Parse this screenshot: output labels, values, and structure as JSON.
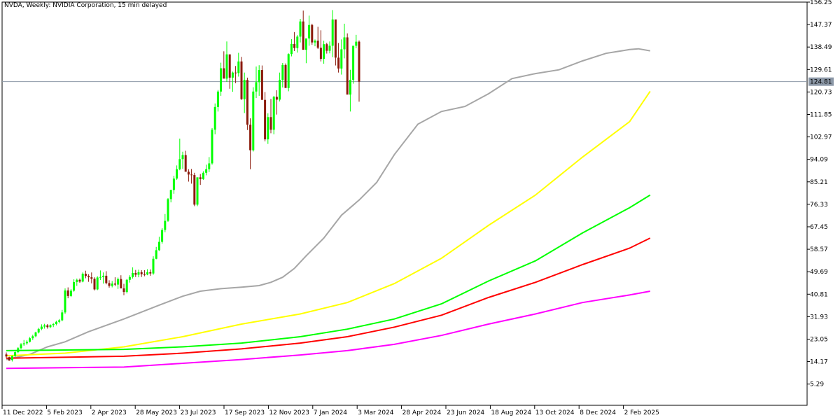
{
  "header": {
    "title": "NVDA, Weekly:  NVIDIA Corporation, 15 min delayed"
  },
  "price_tag": {
    "value": "124.81",
    "bg_color": "#8c98a7"
  },
  "chart_data": {
    "type": "line",
    "chart_kind": "candlestick",
    "timeframe": "Weekly",
    "y_ticks": [
      "156.25",
      "147.37",
      "138.49",
      "129.61",
      "120.73",
      "111.85",
      "102.97",
      "94.09",
      "85.21",
      "76.33",
      "67.45",
      "58.57",
      "49.69",
      "40.81",
      "31.93",
      "23.05",
      "14.17",
      "5.29"
    ],
    "ylim": [
      -3.1,
      156.25
    ],
    "x_ticks": [
      "11 Dec 2022",
      "5 Feb 2023",
      "2 Apr 2023",
      "28 May 2023",
      "23 Jul 2023",
      "17 Sep 2023",
      "12 Nov 2023",
      "7 Jan 2024",
      "3 Mar 2024",
      "28 Apr 2024",
      "23 Jun 2024",
      "18 Aug 2024",
      "13 Oct 2024",
      "8 Dec 2024",
      "2 Feb 2025"
    ],
    "current_price": 124.81,
    "colors": {
      "up": "#00ff00",
      "down": "#8b1a0b",
      "grid": "#000000"
    },
    "series": [
      {
        "style": "candlestick",
        "values": [
          [
            17.0,
            17.8,
            15.5,
            16.2
          ],
          [
            15.9,
            16.1,
            14.5,
            14.6
          ],
          [
            14.8,
            16.6,
            14.2,
            16.4
          ],
          [
            16.4,
            18.2,
            16.0,
            17.9
          ],
          [
            17.9,
            19.9,
            17.5,
            19.5
          ],
          [
            19.5,
            21.5,
            19.0,
            21.0
          ],
          [
            21.0,
            22.7,
            20.4,
            21.4
          ],
          [
            21.4,
            22.6,
            20.8,
            22.0
          ],
          [
            22.0,
            23.9,
            21.7,
            23.4
          ],
          [
            23.4,
            24.8,
            22.7,
            24.2
          ],
          [
            24.2,
            26.0,
            23.8,
            25.7
          ],
          [
            25.7,
            27.5,
            25.3,
            27.1
          ],
          [
            27.1,
            28.9,
            26.6,
            28.0
          ],
          [
            28.0,
            29.1,
            27.2,
            28.5
          ],
          [
            28.5,
            29.0,
            27.2,
            27.8
          ],
          [
            27.8,
            28.9,
            27.4,
            28.6
          ],
          [
            28.6,
            29.4,
            27.8,
            29.0
          ],
          [
            29.0,
            30.3,
            28.5,
            29.9
          ],
          [
            29.9,
            31.0,
            29.3,
            30.5
          ],
          [
            30.5,
            34.6,
            30.1,
            33.6
          ],
          [
            33.6,
            43.1,
            33.0,
            42.3
          ],
          [
            42.3,
            43.5,
            39.2,
            40.1
          ],
          [
            40.1,
            42.8,
            39.7,
            42.2
          ],
          [
            42.2,
            46.7,
            41.8,
            45.6
          ],
          [
            45.6,
            47.0,
            44.1,
            46.5
          ],
          [
            46.5,
            47.0,
            45.3,
            45.8
          ],
          [
            45.8,
            49.4,
            45.5,
            48.9
          ],
          [
            48.9,
            50.1,
            47.1,
            48.0
          ],
          [
            48.0,
            48.7,
            45.7,
            47.5
          ],
          [
            47.5,
            49.4,
            45.1,
            46.9
          ],
          [
            46.9,
            47.5,
            42.3,
            42.7
          ],
          [
            42.7,
            47.9,
            42.4,
            47.4
          ],
          [
            47.4,
            50.2,
            46.4,
            47.6
          ],
          [
            47.6,
            49.4,
            45.0,
            48.1
          ],
          [
            48.1,
            49.9,
            44.7,
            45.2
          ],
          [
            45.2,
            46.3,
            43.4,
            44.1
          ],
          [
            44.1,
            46.0,
            43.5,
            45.0
          ],
          [
            45.0,
            47.5,
            44.0,
            44.6
          ],
          [
            44.6,
            47.4,
            42.9,
            46.8
          ],
          [
            46.8,
            48.3,
            43.7,
            43.1
          ],
          [
            43.1,
            44.9,
            40.4,
            41.7
          ],
          [
            41.7,
            46.8,
            41.1,
            46.5
          ],
          [
            46.5,
            48.3,
            45.4,
            47.6
          ],
          [
            47.6,
            51.4,
            47.0,
            49.2
          ],
          [
            49.2,
            50.4,
            47.6,
            48.5
          ],
          [
            48.5,
            50.5,
            47.5,
            49.5
          ],
          [
            49.5,
            50.3,
            47.6,
            48.7
          ],
          [
            48.7,
            50.3,
            47.9,
            48.6
          ],
          [
            48.6,
            50.7,
            48.3,
            49.5
          ],
          [
            49.5,
            50.6,
            48.1,
            49.0
          ],
          [
            49.0,
            55.8,
            48.5,
            54.8
          ],
          [
            54.8,
            59.5,
            54.6,
            58.2
          ],
          [
            58.2,
            63.5,
            57.9,
            61.5
          ],
          [
            61.5,
            66.9,
            60.8,
            66.2
          ],
          [
            66.2,
            72.5,
            65.3,
            69.8
          ],
          [
            69.8,
            78.8,
            69.4,
            78.4
          ],
          [
            78.4,
            82.1,
            77.1,
            82.0
          ],
          [
            82.0,
            87.6,
            80.5,
            86.5
          ],
          [
            86.5,
            91.7,
            86.0,
            90.2
          ],
          [
            90.2,
            102.3,
            89.8,
            94.2
          ],
          [
            94.2,
            97.1,
            90.4,
            95.8
          ],
          [
            95.8,
            97.5,
            90.4,
            89.2
          ],
          [
            89.2,
            90.2,
            85.3,
            88.1
          ],
          [
            88.1,
            90.3,
            84.5,
            87.9
          ],
          [
            87.9,
            88.8,
            75.6,
            76.2
          ],
          [
            76.2,
            86.7,
            75.6,
            87.0
          ],
          [
            87.0,
            88.3,
            84.0,
            86.3
          ],
          [
            86.3,
            89.4,
            86.0,
            88.8
          ],
          [
            88.8,
            92.0,
            87.8,
            90.2
          ],
          [
            90.2,
            95.0,
            89.1,
            92.5
          ],
          [
            92.5,
            106.5,
            92.0,
            105.8
          ],
          [
            105.8,
            116.2,
            104.0,
            114.8
          ],
          [
            114.8,
            121.5,
            113.0,
            120.9
          ],
          [
            120.9,
            132.3,
            119.2,
            130.1
          ],
          [
            130.1,
            136.8,
            126.9,
            126.0
          ],
          [
            126.0,
            140.7,
            124.7,
            135.6
          ],
          [
            135.6,
            131.0,
            122.0,
            126.4
          ],
          [
            126.4,
            128.8,
            120.8,
            128.4
          ],
          [
            128.4,
            131.0,
            124.2,
            128.2
          ],
          [
            128.2,
            136.2,
            126.8,
            132.8
          ],
          [
            132.8,
            134.6,
            117.6,
            117.9
          ],
          [
            117.9,
            128.4,
            112.4,
            125.5
          ],
          [
            125.5,
            126.4,
            105.7,
            107.8
          ],
          [
            107.8,
            110.3,
            90.2,
            97.7
          ],
          [
            97.7,
            122.6,
            97.2,
            120.9
          ],
          [
            120.9,
            130.8,
            118.3,
            124.6
          ],
          [
            124.6,
            131.3,
            119.2,
            129.4
          ],
          [
            129.4,
            131.2,
            118.2,
            117.6
          ],
          [
            117.6,
            120.7,
            101.2,
            102.0
          ],
          [
            102.0,
            112.3,
            100.2,
            110.8
          ],
          [
            110.8,
            118.0,
            104.4,
            105.8
          ],
          [
            105.8,
            119.2,
            104.0,
            118.8
          ],
          [
            118.8,
            121.4,
            111.8,
            117.7
          ],
          [
            117.7,
            128.4,
            117.0,
            125.5
          ],
          [
            125.5,
            132.2,
            122.5,
            131.4
          ],
          [
            131.4,
            132.0,
            123.8,
            122.3
          ],
          [
            122.3,
            136.0,
            121.0,
            135.7
          ],
          [
            135.7,
            141.6,
            134.8,
            139.7
          ],
          [
            139.7,
            144.4,
            136.9,
            138.1
          ],
          [
            138.1,
            143.2,
            136.3,
            142.6
          ],
          [
            142.6,
            149.6,
            140.3,
            148.6
          ],
          [
            148.6,
            152.9,
            141.2,
            137.4
          ],
          [
            137.4,
            140.8,
            132.1,
            141.9
          ],
          [
            141.9,
            150.9,
            139.0,
            147.2
          ],
          [
            147.2,
            147.7,
            139.4,
            140.3
          ],
          [
            140.3,
            141.5,
            138.8,
            141.0
          ],
          [
            141.0,
            146.5,
            137.7,
            138.2
          ],
          [
            138.2,
            145.1,
            132.8,
            133.8
          ],
          [
            133.8,
            141.0,
            131.9,
            139.6
          ],
          [
            139.6,
            140.2,
            135.9,
            137.0
          ],
          [
            137.0,
            140.7,
            136.0,
            139.0
          ],
          [
            139.0,
            153.1,
            134.5,
            149.4
          ],
          [
            149.4,
            145.2,
            131.2,
            134.3
          ],
          [
            134.3,
            140.1,
            128.4,
            130.0
          ],
          [
            130.0,
            141.5,
            127.6,
            137.6
          ],
          [
            137.6,
            147.7,
            134.0,
            142.3
          ],
          [
            142.3,
            143.9,
            120.0,
            119.7
          ],
          [
            119.7,
            129.5,
            113.0,
            125.5
          ],
          [
            125.5,
            138.5,
            124.0,
            139.0
          ],
          [
            139.0,
            143.3,
            138.0,
            140.6
          ],
          [
            140.6,
            141.1,
            116.9,
            124.8
          ]
        ]
      },
      {
        "style": "line",
        "color": "#a6a6a6",
        "values": [
          [
            0,
            15.0
          ],
          [
            8,
            17.0
          ],
          [
            14,
            20.0
          ],
          [
            20,
            22.0
          ],
          [
            28,
            26.0
          ],
          [
            40,
            31.0
          ],
          [
            52,
            36.5
          ],
          [
            60,
            40.0
          ],
          [
            66,
            42.0
          ],
          [
            73,
            43.0
          ],
          [
            80,
            43.6
          ],
          [
            86,
            44.2
          ],
          [
            90,
            45.5
          ],
          [
            94,
            47.5
          ],
          [
            98,
            51.0
          ],
          [
            102,
            56.0
          ],
          [
            108,
            63.0
          ],
          [
            114,
            72.0
          ],
          [
            120,
            78.0
          ],
          [
            126,
            85.0
          ],
          [
            132,
            96.0
          ],
          [
            140,
            108.0
          ],
          [
            148,
            113.0
          ],
          [
            156,
            115.0
          ],
          [
            164,
            120.0
          ],
          [
            172,
            126.0
          ],
          [
            180,
            128.0
          ],
          [
            188,
            129.5
          ],
          [
            196,
            133.0
          ],
          [
            204,
            136.0
          ],
          [
            212,
            137.5
          ],
          [
            215,
            137.8
          ],
          [
            219,
            137.0
          ]
        ]
      },
      {
        "style": "line",
        "color": "#ffff00",
        "values": [
          [
            0,
            16.5
          ],
          [
            20,
            17.5
          ],
          [
            40,
            20.0
          ],
          [
            60,
            24.0
          ],
          [
            80,
            29.0
          ],
          [
            100,
            33.0
          ],
          [
            116,
            37.5
          ],
          [
            132,
            45.0
          ],
          [
            148,
            55.0
          ],
          [
            164,
            68.0
          ],
          [
            180,
            80.0
          ],
          [
            196,
            95.0
          ],
          [
            212,
            109.0
          ],
          [
            219,
            121.0
          ]
        ]
      },
      {
        "style": "line",
        "color": "#00ff00",
        "values": [
          [
            0,
            18.5
          ],
          [
            40,
            19.0
          ],
          [
            60,
            20.0
          ],
          [
            80,
            21.5
          ],
          [
            100,
            24.0
          ],
          [
            116,
            27.0
          ],
          [
            132,
            31.0
          ],
          [
            148,
            37.0
          ],
          [
            164,
            46.0
          ],
          [
            180,
            54.0
          ],
          [
            196,
            65.0
          ],
          [
            212,
            75.0
          ],
          [
            219,
            80.0
          ]
        ]
      },
      {
        "style": "line",
        "color": "#ff0000",
        "values": [
          [
            0,
            15.5
          ],
          [
            40,
            16.3
          ],
          [
            60,
            17.5
          ],
          [
            80,
            19.2
          ],
          [
            100,
            21.5
          ],
          [
            116,
            24.0
          ],
          [
            132,
            27.8
          ],
          [
            148,
            32.5
          ],
          [
            164,
            39.5
          ],
          [
            180,
            45.5
          ],
          [
            196,
            52.5
          ],
          [
            212,
            59.0
          ],
          [
            219,
            63.0
          ]
        ]
      },
      {
        "style": "line",
        "color": "#ff00ff",
        "values": [
          [
            0,
            11.5
          ],
          [
            40,
            12.0
          ],
          [
            60,
            13.5
          ],
          [
            80,
            15.0
          ],
          [
            100,
            16.8
          ],
          [
            116,
            18.5
          ],
          [
            132,
            21.0
          ],
          [
            148,
            24.5
          ],
          [
            164,
            29.0
          ],
          [
            180,
            33.0
          ],
          [
            196,
            37.5
          ],
          [
            212,
            40.5
          ],
          [
            219,
            42.0
          ]
        ]
      }
    ]
  }
}
